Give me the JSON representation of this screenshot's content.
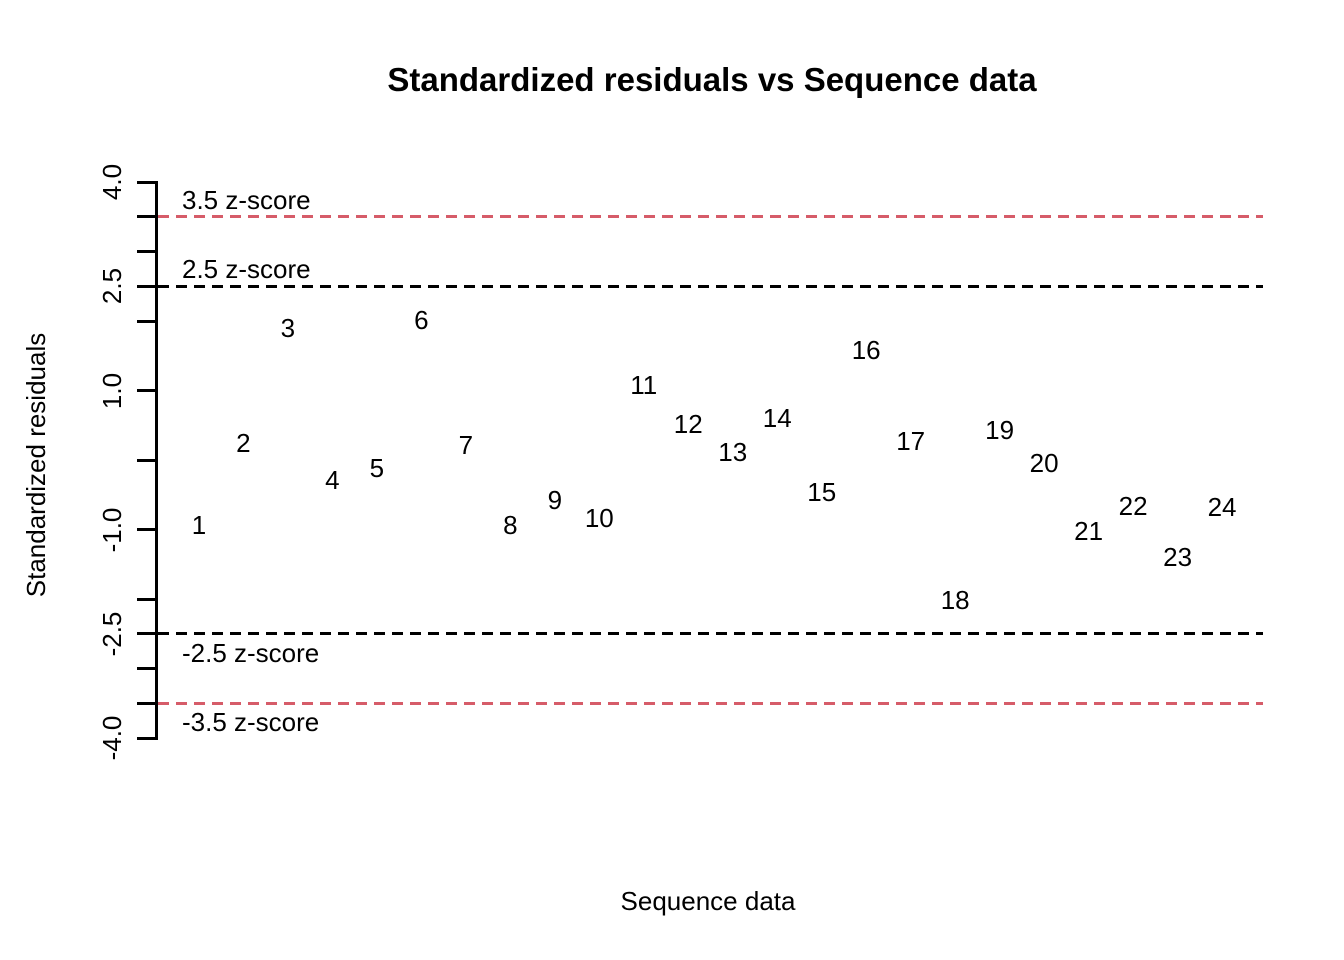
{
  "chart_data": {
    "type": "scatter",
    "title": "Standardized residuals vs Sequence data",
    "xlabel": "Sequence data",
    "ylabel": "Standardized residuals",
    "point_style": "observation-index-number-labels",
    "grid": false,
    "legend": "none",
    "xlim": [
      0.08,
      24.92
    ],
    "ylim": [
      -4,
      4
    ],
    "x": [
      1,
      2,
      3,
      4,
      5,
      6,
      7,
      8,
      9,
      10,
      11,
      12,
      13,
      14,
      15,
      16,
      17,
      18,
      19,
      20,
      21,
      22,
      23,
      24
    ],
    "y": [
      -0.94,
      0.24,
      1.9,
      -0.29,
      -0.12,
      2.01,
      0.22,
      -0.94,
      -0.58,
      -0.84,
      1.08,
      0.52,
      0.12,
      0.6,
      -0.46,
      1.58,
      0.27,
      -2.01,
      0.43,
      -0.04,
      -1.02,
      -0.66,
      -1.39,
      -0.68
    ],
    "y_axis": {
      "tick_values": [
        4,
        3.5,
        3,
        2.5,
        2,
        1,
        0,
        -1,
        -2,
        -2.5,
        -3,
        -3.5,
        -4
      ],
      "labeled_ticks": [
        {
          "value": 4,
          "label": "4.0"
        },
        {
          "value": 2.5,
          "label": "2.5"
        },
        {
          "value": 1,
          "label": "1.0"
        },
        {
          "value": -1,
          "label": "-1.0"
        },
        {
          "value": -2.5,
          "label": "-2.5"
        },
        {
          "value": -4,
          "label": "-4.0"
        }
      ]
    },
    "reference_lines": [
      {
        "value": 3.5,
        "label": "3.5 z-score",
        "color": "#d65c69",
        "style": "dashed",
        "label_position": "above"
      },
      {
        "value": 2.5,
        "label": "2.5 z-score",
        "color": "#000000",
        "style": "dashed",
        "label_position": "above"
      },
      {
        "value": -2.5,
        "label": "-2.5 z-score",
        "color": "#000000",
        "style": "dashed",
        "label_position": "below"
      },
      {
        "value": -3.5,
        "label": "-3.5 z-score",
        "color": "#d65c69",
        "style": "dashed",
        "label_position": "below"
      }
    ],
    "colors": {
      "points": "#000000",
      "axis": "#000000",
      "z35_line": "#d65c69",
      "z25_line": "#000000"
    }
  }
}
